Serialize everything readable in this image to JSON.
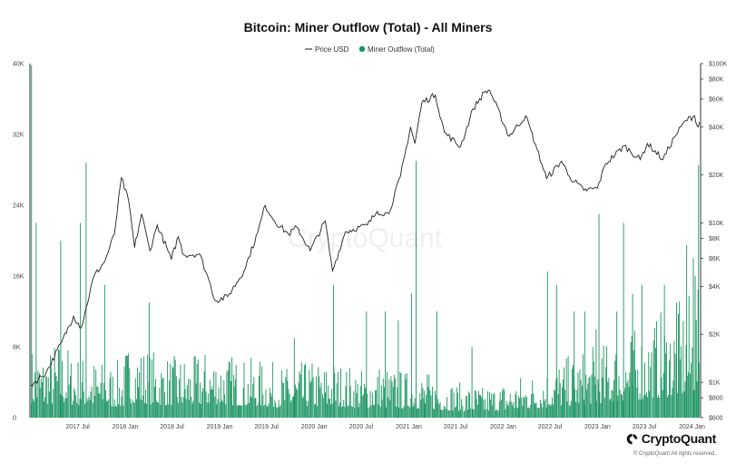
{
  "chart_data": {
    "type": "bar",
    "title": "Bitcoin: Miner Outflow (Total) - All Miners",
    "legend": {
      "placement": "top-center",
      "items": [
        {
          "label": "Price USD",
          "marker": "line",
          "color": "#222222"
        },
        {
          "label": "Miner Outflow (Total)",
          "marker": "dot",
          "color": "#1a9461"
        }
      ]
    },
    "x_ticks": [
      "2017 Jul",
      "2018 Jan",
      "2018 Jul",
      "2019 Jan",
      "2019 Jul",
      "2020 Jan",
      "2020 Jul",
      "2021 Jan",
      "2021 Jul",
      "2022 Jan",
      "2022 Jul",
      "2023 Jan",
      "2023 Jul",
      "2024 Jan"
    ],
    "x_range": [
      "2017-01-01",
      "2024-01-31"
    ],
    "y_left": {
      "range": [
        0,
        40000
      ],
      "ticks": [
        "0",
        "8K",
        "16K",
        "24K",
        "32K",
        "40K"
      ]
    },
    "y_right": {
      "scale": "log",
      "range": [
        600,
        100000
      ],
      "ticks": [
        {
          "label": "$600",
          "value": 600
        },
        {
          "label": "$800",
          "value": 800
        },
        {
          "label": "$1K",
          "value": 1000
        },
        {
          "label": "$2K",
          "value": 2000
        },
        {
          "label": "$4K",
          "value": 4000
        },
        {
          "label": "$6K",
          "value": 6000
        },
        {
          "label": "$8K",
          "value": 8000
        },
        {
          "label": "$10K",
          "value": 10000
        },
        {
          "label": "$20K",
          "value": 20000
        },
        {
          "label": "$40K",
          "value": 40000
        },
        {
          "label": "$60K",
          "value": 60000
        },
        {
          "label": "$80K",
          "value": 80000
        },
        {
          "label": "$100K",
          "value": 100000
        }
      ]
    },
    "series": [
      {
        "name": "Price USD",
        "axis": "right",
        "points": [
          [
            "2017-01-01",
            960
          ],
          [
            "2017-03-01",
            1150
          ],
          [
            "2017-05-01",
            1800
          ],
          [
            "2017-06-15",
            2600
          ],
          [
            "2017-07-15",
            2200
          ],
          [
            "2017-09-01",
            4600
          ],
          [
            "2017-10-15",
            5800
          ],
          [
            "2017-11-20",
            8500
          ],
          [
            "2017-12-17",
            19200
          ],
          [
            "2018-01-15",
            13500
          ],
          [
            "2018-02-06",
            7000
          ],
          [
            "2018-03-05",
            11400
          ],
          [
            "2018-04-06",
            6700
          ],
          [
            "2018-05-05",
            9700
          ],
          [
            "2018-06-28",
            5900
          ],
          [
            "2018-07-25",
            8200
          ],
          [
            "2018-08-15",
            6300
          ],
          [
            "2018-10-15",
            6400
          ],
          [
            "2018-11-20",
            4400
          ],
          [
            "2018-12-15",
            3250
          ],
          [
            "2019-02-01",
            3450
          ],
          [
            "2019-04-05",
            5000
          ],
          [
            "2019-05-28",
            8700
          ],
          [
            "2019-06-26",
            12900
          ],
          [
            "2019-08-01",
            10300
          ],
          [
            "2019-09-24",
            8500
          ],
          [
            "2019-10-27",
            9400
          ],
          [
            "2019-12-17",
            6700
          ],
          [
            "2020-02-13",
            10300
          ],
          [
            "2020-03-12",
            5000
          ],
          [
            "2020-05-01",
            8800
          ],
          [
            "2020-07-25",
            9700
          ],
          [
            "2020-09-01",
            11800
          ],
          [
            "2020-10-15",
            11400
          ],
          [
            "2020-11-30",
            19600
          ],
          [
            "2021-01-08",
            40000
          ],
          [
            "2021-01-25",
            31500
          ],
          [
            "2021-02-21",
            57000
          ],
          [
            "2021-04-14",
            63500
          ],
          [
            "2021-05-19",
            37000
          ],
          [
            "2021-07-20",
            30000
          ],
          [
            "2021-09-07",
            52000
          ],
          [
            "2021-10-20",
            66000
          ],
          [
            "2021-11-10",
            68000
          ],
          [
            "2022-01-24",
            35000
          ],
          [
            "2022-03-29",
            47000
          ],
          [
            "2022-05-12",
            29000
          ],
          [
            "2022-06-18",
            19000
          ],
          [
            "2022-08-15",
            24400
          ],
          [
            "2022-09-15",
            19500
          ],
          [
            "2022-11-09",
            16000
          ],
          [
            "2022-12-31",
            16500
          ],
          [
            "2023-02-01",
            23500
          ],
          [
            "2023-04-14",
            30500
          ],
          [
            "2023-06-15",
            25000
          ],
          [
            "2023-07-13",
            31500
          ],
          [
            "2023-09-11",
            25000
          ],
          [
            "2023-10-25",
            34500
          ],
          [
            "2023-12-08",
            44000
          ],
          [
            "2024-01-11",
            47000
          ],
          [
            "2024-01-25",
            40000
          ],
          [
            "2024-01-31",
            43000
          ]
        ]
      },
      {
        "name": "Miner Outflow (Total)",
        "axis": "left",
        "bars_per_month": 8,
        "monthly_typical": [
          3500,
          3300,
          3400,
          3800,
          3600,
          3200,
          3100,
          3000,
          2900,
          2800,
          2700,
          2800,
          3600,
          3800,
          3500,
          3300,
          3200,
          3100,
          3000,
          3100,
          3000,
          3200,
          3300,
          3400,
          3300,
          3100,
          3000,
          2900,
          2900,
          2800,
          2700,
          2600,
          2500,
          2600,
          2700,
          2800,
          2800,
          2700,
          2900,
          2700,
          2600,
          2500,
          2400,
          2600,
          2700,
          2500,
          2400,
          2300,
          2500,
          2300,
          2200,
          2100,
          1900,
          1800,
          1700,
          1600,
          1600,
          1500,
          1600,
          1700,
          1800,
          1900,
          2100,
          2200,
          2300,
          2500,
          2800,
          2900,
          3000,
          3200,
          3300,
          3500,
          3600,
          3800,
          4000,
          4200,
          4300,
          4500,
          4800,
          5000,
          5200,
          5500,
          5600,
          6000,
          6200,
          6500,
          6000,
          6800
        ],
        "spikes": [
          [
            "2017-01-02",
            39800
          ],
          [
            "2017-01-20",
            22000
          ],
          [
            "2017-04-25",
            20000
          ],
          [
            "2017-07-10",
            22000
          ],
          [
            "2017-08-01",
            28800
          ],
          [
            "2017-10-12",
            15000
          ],
          [
            "2018-04-02",
            13000
          ],
          [
            "2019-10-15",
            9000
          ],
          [
            "2020-03-15",
            15000
          ],
          [
            "2020-07-20",
            12000
          ],
          [
            "2020-10-01",
            12000
          ],
          [
            "2020-11-20",
            11000
          ],
          [
            "2021-01-10",
            14000
          ],
          [
            "2021-01-28",
            29000
          ],
          [
            "2021-04-18",
            12000
          ],
          [
            "2021-09-01",
            8000
          ],
          [
            "2022-06-20",
            16500
          ],
          [
            "2022-07-25",
            15000
          ],
          [
            "2022-10-01",
            12000
          ],
          [
            "2022-11-11",
            12000
          ],
          [
            "2022-12-25",
            10000
          ],
          [
            "2023-01-05",
            23000
          ],
          [
            "2023-03-15",
            12000
          ],
          [
            "2023-04-10",
            22000
          ],
          [
            "2023-05-15",
            14000
          ],
          [
            "2023-06-20",
            15000
          ],
          [
            "2023-09-15",
            15000
          ],
          [
            "2023-11-01",
            13000
          ],
          [
            "2023-12-10",
            19500
          ],
          [
            "2024-01-05",
            18000
          ],
          [
            "2024-01-12",
            16000
          ],
          [
            "2024-01-25",
            28500
          ]
        ]
      }
    ],
    "grid": false
  },
  "watermark": "CryptoQuant",
  "brand": {
    "name": "CryptoQuant",
    "copyright": "© CryptoQuant All rights reserved."
  },
  "colors": {
    "bars": "#1a9461",
    "price_line": "#222222",
    "axis": "#333333",
    "tick_text": "#444444"
  }
}
